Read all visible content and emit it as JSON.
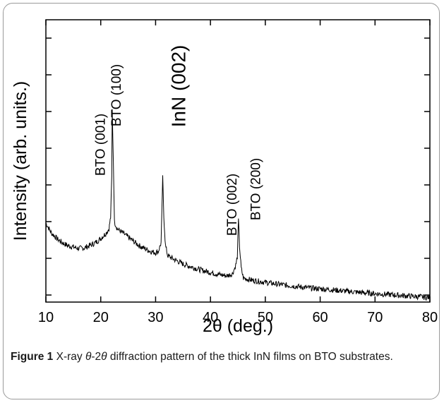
{
  "chart_data": {
    "type": "line",
    "xlabel": "2θ (deg.)",
    "ylabel": "Intensity (arb. units.)",
    "xlim": [
      10,
      80
    ],
    "xticks": [
      "10",
      "20",
      "30",
      "40",
      "50",
      "60",
      "70",
      "80"
    ],
    "yticks_labeled": false,
    "grid": false,
    "series": [
      {
        "x": [
          10,
          11,
          12,
          13,
          14,
          15,
          16,
          17,
          18,
          19,
          20,
          20.5,
          21,
          21.5,
          21.8,
          22.0,
          22.1,
          22.3,
          22.5,
          23,
          24,
          25,
          26,
          27,
          28,
          29,
          30,
          30.5,
          31.0,
          31.3,
          31.5,
          31.8,
          32.2,
          33,
          34,
          35,
          36,
          37,
          38,
          39,
          40,
          41,
          42,
          43,
          44,
          44.6,
          44.9,
          45.1,
          45.3,
          45.6,
          46,
          47,
          48,
          50,
          52,
          55,
          58,
          60,
          63,
          65,
          68,
          70,
          73,
          75,
          78,
          80
        ],
        "y": [
          0.28,
          0.245,
          0.225,
          0.21,
          0.2,
          0.195,
          0.19,
          0.192,
          0.2,
          0.21,
          0.225,
          0.235,
          0.245,
          0.26,
          0.3,
          0.44,
          0.68,
          0.5,
          0.285,
          0.26,
          0.245,
          0.23,
          0.215,
          0.2,
          0.19,
          0.18,
          0.175,
          0.18,
          0.21,
          0.44,
          0.3,
          0.2,
          0.165,
          0.155,
          0.145,
          0.135,
          0.128,
          0.122,
          0.115,
          0.11,
          0.105,
          0.1,
          0.096,
          0.093,
          0.1,
          0.13,
          0.16,
          0.29,
          0.2,
          0.12,
          0.085,
          0.08,
          0.076,
          0.07,
          0.064,
          0.057,
          0.05,
          0.047,
          0.042,
          0.038,
          0.033,
          0.03,
          0.026,
          0.023,
          0.019,
          0.016
        ]
      }
    ],
    "annotations": [
      {
        "text": "BTO (001)",
        "x": 22.0,
        "y": 0.44
      },
      {
        "text": "BTO (100)",
        "x": 22.1,
        "y": 0.68
      },
      {
        "text": "InN (002)",
        "x": 31.3,
        "y": 0.44
      },
      {
        "text": "BTO (002)",
        "x": 45.1,
        "y": 0.16
      },
      {
        "text": "BTO (200)",
        "x": 45.3,
        "y": 0.29
      }
    ]
  },
  "caption": {
    "figure_label": "Figure 1",
    "text_before": " X-ray ",
    "theta": "θ",
    "dash_two": "-2",
    "text_after": " diffraction pattern of the thick InN films on BTO substrates."
  }
}
